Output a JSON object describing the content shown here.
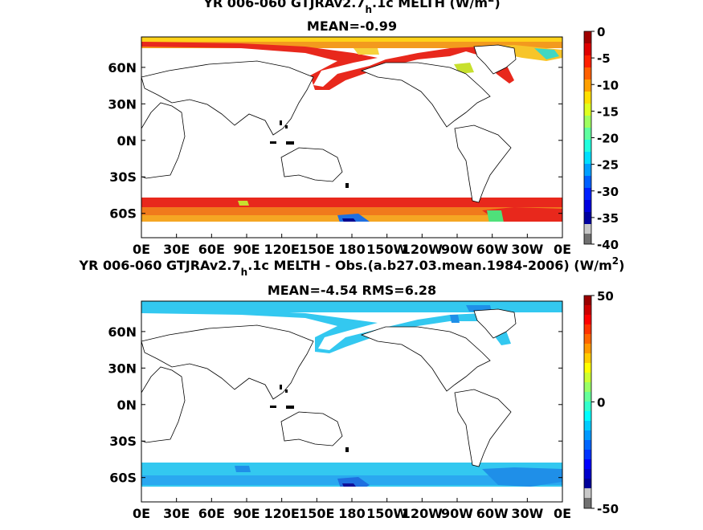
{
  "chart_data": [
    {
      "type": "heatmap",
      "title_lines": [
        {
          "pre": "YR 006-060 GTJRAv2.7",
          "sub": "h",
          "post": ".1c  MELTH (W/m",
          "sup": "2",
          "end": ")"
        },
        {
          "text": "MEAN=-0.99"
        }
      ],
      "x_ticks": [
        "0E",
        "30E",
        "60E",
        "90E",
        "120E",
        "150E",
        "180",
        "150W",
        "120W",
        "90W",
        "60W",
        "30W",
        "0E"
      ],
      "y_ticks": [
        "60N",
        "30N",
        "0N",
        "30S",
        "60S"
      ],
      "y_tick_lat": [
        60,
        30,
        0,
        -30,
        -60
      ],
      "lat_range": [
        -80,
        85
      ],
      "colorbar": {
        "min": -40,
        "max": 0,
        "ticks": [
          0,
          -5,
          -10,
          -15,
          -20,
          -25,
          -30,
          -35,
          -40
        ],
        "n_colors": 16,
        "palette": "jet"
      },
      "field_description": "sea-ice meltwater heat flux; near 0 (red) in polar seas, strongest negative (blue) in Ross Sea",
      "colors": {
        "near_zero": "#e8281c",
        "mid": "#f5a623",
        "low": "#1f6fe0",
        "extreme": "#000090"
      }
    },
    {
      "type": "heatmap",
      "title_lines": [
        {
          "pre": "YR 006-060 GTJRAv2.7",
          "sub": "h",
          "post": ".1c MELTH - Obs.(a.b27.03.mean.1984-2006) (W/m",
          "sup": "2",
          "end": ")"
        },
        {
          "text": "MEAN=-4.54 RMS=6.28"
        }
      ],
      "x_ticks": [
        "0E",
        "30E",
        "60E",
        "90E",
        "120E",
        "150E",
        "180",
        "150W",
        "120W",
        "90W",
        "60W",
        "30W",
        "0E"
      ],
      "y_ticks": [
        "60N",
        "30N",
        "0N",
        "30S",
        "60S"
      ],
      "y_tick_lat": [
        60,
        30,
        0,
        -30,
        -60
      ],
      "lat_range": [
        -80,
        85
      ],
      "colorbar": {
        "min": -50,
        "max": 50,
        "ticks": [
          50,
          0,
          -50
        ],
        "n_colors": 20,
        "palette": "jet"
      },
      "field_description": "model minus observations; mostly light-blue negative bias in polar seas",
      "colors": {
        "bias": "#33c8f0",
        "bias_strong": "#1f8fe8",
        "extreme": "#10109a"
      }
    }
  ]
}
